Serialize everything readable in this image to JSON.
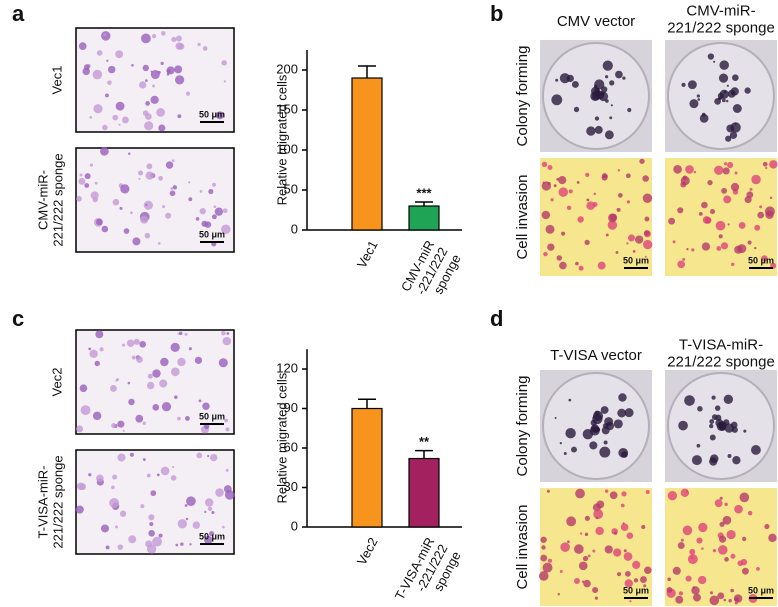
{
  "panels": [
    {
      "label": "a",
      "images": [
        {
          "label": "Vec1",
          "scale": "50 μm"
        },
        {
          "label": "CMV-miR-\n221/222 sponge",
          "scale": "50 μm"
        }
      ]
    },
    {
      "label": "b",
      "columns": [
        "CMV vector",
        "CMV-miR-\n221/222 sponge"
      ],
      "rows": [
        "Colony forming",
        "Cell invasion"
      ],
      "scales": [
        "50 μm",
        "50 μm"
      ]
    },
    {
      "label": "c",
      "images": [
        {
          "label": "Vec2",
          "scale": "50 μm"
        },
        {
          "label": "T-VISA-miR-\n221/222 sponge",
          "scale": "50 μm"
        }
      ]
    },
    {
      "label": "d",
      "columns": [
        "T-VISA vector",
        "T-VISA-miR-\n221/222 sponge"
      ],
      "rows": [
        "Colony forming",
        "Cell invasion"
      ],
      "scales": [
        "50 μm",
        "50 μm"
      ]
    }
  ],
  "chart_data": [
    {
      "type": "bar",
      "ylabel": "Relative migrated cells",
      "categories": [
        "Vec1",
        "CMV-miR\n-221/222\nsponge"
      ],
      "values": [
        190,
        30
      ],
      "errors": [
        15,
        5
      ],
      "colors": [
        "#f7941d",
        "#1fa456"
      ],
      "annotations": [
        {
          "index": 1,
          "text": "***"
        }
      ],
      "ylim": [
        0,
        225
      ],
      "yticks": [
        0,
        50,
        100,
        150,
        200
      ]
    },
    {
      "type": "bar",
      "ylabel": "Relative migrated cells",
      "categories": [
        "Vec2",
        "T-VISA-miR\n-221/222\nsponge"
      ],
      "values": [
        90,
        52
      ],
      "errors": [
        7,
        6
      ],
      "colors": [
        "#f7941d",
        "#a3215f"
      ],
      "annotations": [
        {
          "index": 1,
          "text": "**"
        }
      ],
      "ylim": [
        0,
        135
      ],
      "yticks": [
        0,
        30,
        60,
        90,
        120
      ]
    }
  ]
}
